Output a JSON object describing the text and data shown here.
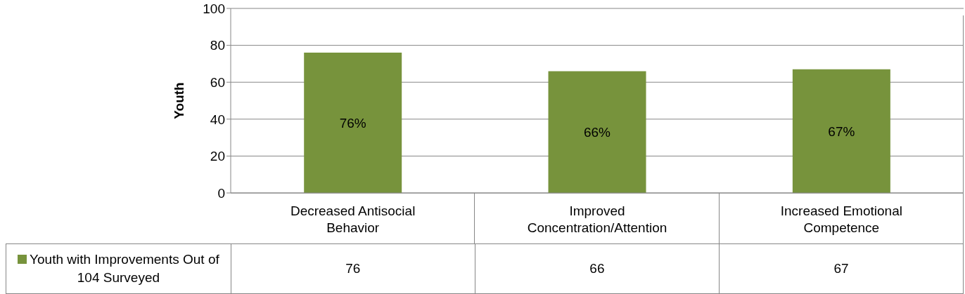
{
  "chart_data": {
    "type": "bar",
    "ylabel": "Youth",
    "categories": [
      "Decreased Antisocial Behavior",
      "Improved Concentration/Attention",
      "Increased Emotional Competence"
    ],
    "series": [
      {
        "name": "Youth with Improvements Out of 104 Surveyed",
        "color": "#77933c",
        "values": [
          76,
          66,
          67
        ]
      }
    ],
    "annotations": [
      "76%",
      "66%",
      "67%"
    ],
    "ylim": [
      0,
      100
    ],
    "yticks": [
      0,
      20,
      40,
      60,
      80,
      100
    ],
    "grid": "y",
    "data_labels": true,
    "legend": "bottom left"
  }
}
